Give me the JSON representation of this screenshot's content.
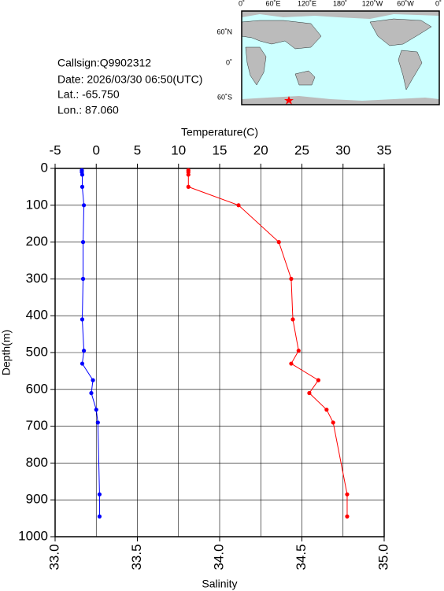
{
  "info": [
    "Callsign:Q9902312",
    "Date:  2026/03/30 06:50(UTC)",
    "Lat.:  -65.750",
    "Lon.:   87.060"
  ],
  "map": {
    "lon_labels": [
      "0˚",
      "60˚E",
      "120˚E",
      "180˚",
      "120˚W",
      "60˚W",
      "0˚"
    ],
    "lat_labels": [
      "60˚N",
      "0˚",
      "60˚S"
    ]
  },
  "chart_data": {
    "type": "profile",
    "y": [
      5,
      10,
      17,
      50,
      100,
      200,
      300,
      410,
      495,
      530,
      575,
      610,
      655,
      690,
      885,
      945
    ],
    "ylim": [
      0,
      1000
    ],
    "yticks": [
      0,
      100,
      200,
      300,
      400,
      500,
      600,
      700,
      800,
      900,
      1000
    ],
    "ylabel": "Depth(m)",
    "xlim": [
      33,
      35
    ],
    "xticks": [
      {
        "value": 33,
        "label": "33.0"
      },
      {
        "value": 33.5,
        "label": "33.5"
      },
      {
        "value": 34,
        "label": "34.0"
      },
      {
        "value": 34.5,
        "label": "34.5"
      },
      {
        "value": 35,
        "label": "35.0"
      }
    ],
    "xlabel": "Salinity",
    "x2lim": [
      -5,
      35
    ],
    "x2ticks": [
      -5,
      0,
      5,
      10,
      15,
      20,
      25,
      30,
      35
    ],
    "x2label": "Temperature(C)",
    "grid": true,
    "series": [
      {
        "color": "#0000ff",
        "axis": "x2",
        "values": [
          -1.75,
          -1.75,
          -1.7,
          -1.7,
          -1.5,
          -1.6,
          -1.6,
          -1.7,
          -1.5,
          -1.7,
          -0.4,
          -0.6,
          0.0,
          0.2,
          0.4,
          0.4
        ]
      },
      {
        "color": "#ff0000",
        "axis": "x",
        "values": [
          33.81,
          33.81,
          33.81,
          33.81,
          34.115,
          34.36,
          34.435,
          34.445,
          34.48,
          34.435,
          34.6,
          34.545,
          34.65,
          34.69,
          34.775,
          34.775
        ]
      }
    ]
  }
}
